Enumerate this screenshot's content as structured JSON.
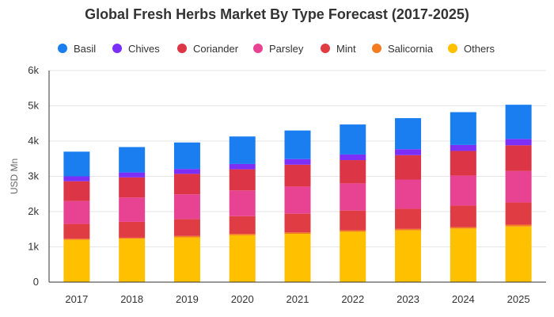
{
  "chart_data": {
    "type": "bar",
    "stacked": true,
    "title": "Global Fresh Herbs Market By Type Forecast (2017-2025)",
    "xlabel": "",
    "ylabel": "USD Mn",
    "ylim": [
      0,
      6000
    ],
    "yticks": [
      0,
      1000,
      2000,
      3000,
      4000,
      5000,
      6000
    ],
    "ytick_labels": [
      "0",
      "1k",
      "2k",
      "3k",
      "4k",
      "5k",
      "6k"
    ],
    "grid": true,
    "legend_position": "top",
    "categories": [
      "2017",
      "2018",
      "2019",
      "2020",
      "2021",
      "2022",
      "2023",
      "2024",
      "2025"
    ],
    "series": [
      {
        "name": "Others",
        "color": "#ffc000",
        "values": [
          1200,
          1230,
          1270,
          1330,
          1370,
          1430,
          1470,
          1520,
          1580
        ]
      },
      {
        "name": "Salicornia",
        "color": "#f47b20",
        "values": [
          30,
          30,
          40,
          40,
          40,
          40,
          40,
          40,
          50
        ]
      },
      {
        "name": "Mint",
        "color": "#e03c44",
        "values": [
          420,
          450,
          480,
          500,
          530,
          560,
          570,
          610,
          630
        ]
      },
      {
        "name": "Parsley",
        "color": "#e84393",
        "values": [
          650,
          690,
          700,
          730,
          770,
          770,
          830,
          850,
          890
        ]
      },
      {
        "name": "Coriander",
        "color": "#dc3545",
        "values": [
          560,
          570,
          580,
          600,
          620,
          660,
          690,
          700,
          730
        ]
      },
      {
        "name": "Chives",
        "color": "#7b2ff7",
        "values": [
          140,
          140,
          140,
          150,
          160,
          160,
          170,
          170,
          180
        ]
      },
      {
        "name": "Basil",
        "color": "#1a7ef0",
        "values": [
          700,
          720,
          750,
          780,
          810,
          850,
          880,
          930,
          970
        ]
      }
    ],
    "legend_order": [
      "Basil",
      "Chives",
      "Coriander",
      "Parsley",
      "Mint",
      "Salicornia",
      "Others"
    ]
  },
  "colors": {
    "grid": "#e6e6e6",
    "axis": "#333333",
    "tick_text": "#333333",
    "title_text": "#333333"
  }
}
